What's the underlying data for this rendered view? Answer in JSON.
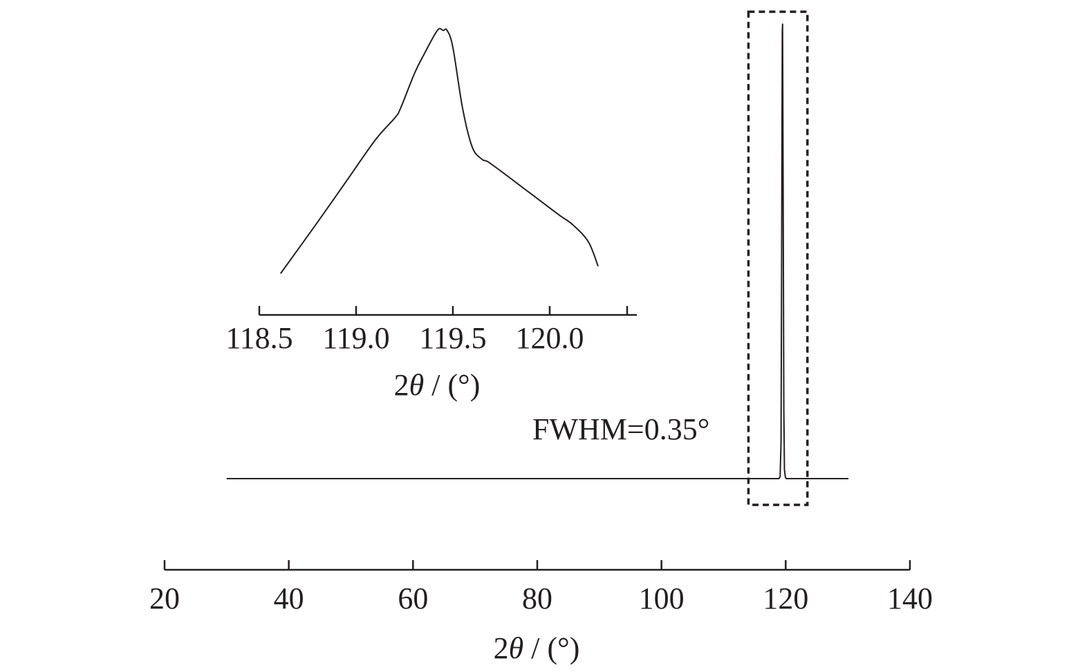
{
  "chart_data": [
    {
      "type": "line",
      "name": "main",
      "xlabel_prefix": "2",
      "xlabel_symbol": "θ",
      "xlabel_suffix": " / (°)",
      "xlim": [
        20,
        140
      ],
      "xticks": [
        20,
        40,
        60,
        80,
        100,
        120,
        140
      ],
      "xtick_labels": [
        "20",
        "40",
        "60",
        "80",
        "100",
        "120",
        "140"
      ],
      "annotation": "FWHM=0.35°",
      "highlight_range": [
        114.0,
        123.5
      ],
      "series": [
        {
          "x": [
            30,
            118.9,
            119.1,
            119.25,
            119.35,
            119.45,
            119.5,
            119.6,
            119.7,
            119.8,
            119.95,
            120.1,
            130.1
          ],
          "y": [
            0,
            0,
            0.004,
            0.08,
            0.5,
            0.98,
            1.0,
            0.6,
            0.15,
            0.02,
            0.003,
            0,
            0
          ]
        }
      ]
    },
    {
      "type": "line",
      "name": "inset",
      "xlabel_prefix": "2",
      "xlabel_symbol": "θ",
      "xlabel_suffix": " / (°)",
      "xlim": [
        118.5,
        120.45
      ],
      "xticks": [
        118.5,
        119.0,
        119.5,
        120.0
      ],
      "xtick_labels": [
        "118.5",
        "119.0",
        "119.5",
        "120.0"
      ],
      "minor_xticks": [
        120.4
      ],
      "series": [
        {
          "x": [
            118.61,
            118.8,
            118.95,
            119.1,
            119.2,
            119.23,
            119.3,
            119.35,
            119.42,
            119.45,
            119.47,
            119.5,
            119.55,
            119.6,
            119.65,
            119.68,
            119.75,
            119.85,
            119.95,
            120.05,
            120.12,
            120.2,
            120.25
          ],
          "y": [
            0.0,
            0.21,
            0.38,
            0.55,
            0.64,
            0.68,
            0.82,
            0.9,
            1.0,
            1.0,
            1.0,
            0.93,
            0.68,
            0.52,
            0.47,
            0.46,
            0.42,
            0.36,
            0.3,
            0.24,
            0.2,
            0.13,
            0.03
          ]
        }
      ]
    }
  ]
}
